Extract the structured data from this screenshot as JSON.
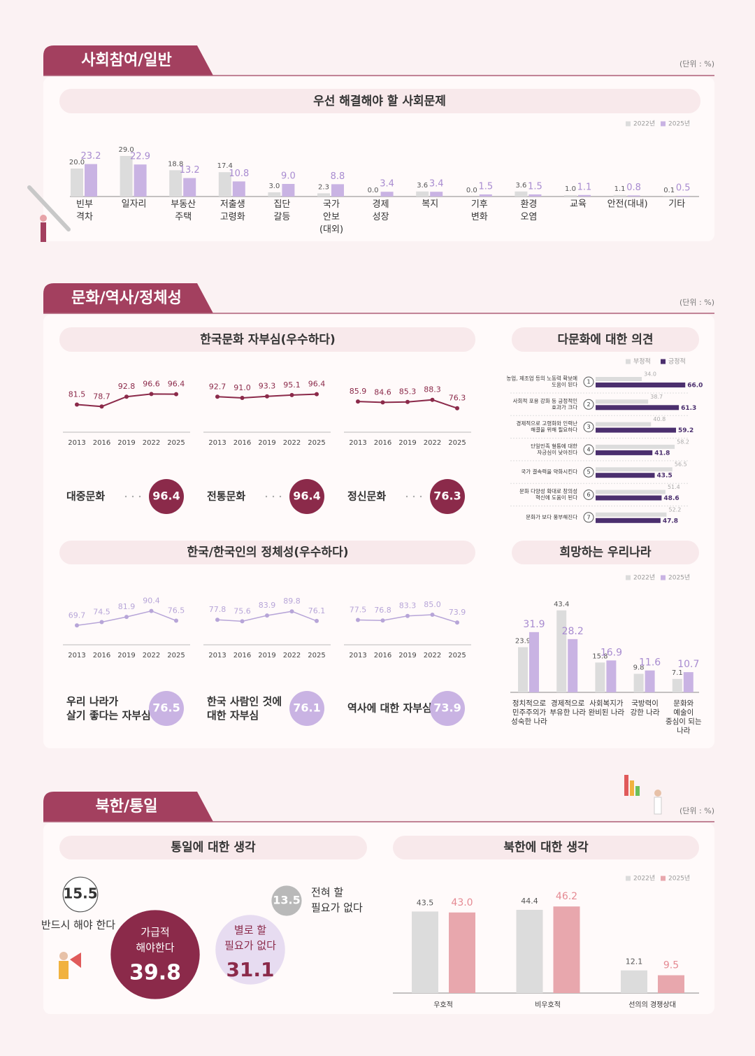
{
  "sections": [
    {
      "title": "사회참여/일반",
      "unit": "(단위 : %)"
    },
    {
      "title": "문화/역사/정체성",
      "unit": "(단위 : %)"
    },
    {
      "title": "북한/통일",
      "unit": "(단위 : %)"
    }
  ],
  "chart_data": [
    {
      "type": "bar",
      "title": "우선 해결해야 할 사회문제",
      "categories": [
        "빈부\n격차",
        "일자리",
        "부동산\n주택",
        "저출생\n고령화",
        "집단\n갈등",
        "국가\n안보\n(대외)",
        "경제\n성장",
        "복지",
        "기후\n변화",
        "환경\n오염",
        "교육",
        "안전(대내)",
        "기타"
      ],
      "series": [
        {
          "name": "2022년",
          "color": "#dcdcdc",
          "values": [
            20.0,
            29.0,
            18.8,
            17.4,
            3.0,
            2.3,
            0.0,
            3.6,
            0.0,
            3.6,
            1.0,
            1.1,
            0.1
          ],
          "value_labels": [
            "20.0",
            "29.0",
            "18.8",
            "17.4",
            "3.0",
            "2.3",
            "0.0",
            "3.6",
            "0.0",
            "3.6",
            "1.0",
            "1.1",
            "0.1"
          ]
        },
        {
          "name": "2025년",
          "color": "#c9b3e3",
          "values": [
            23.2,
            22.9,
            13.2,
            10.8,
            9.0,
            8.8,
            3.4,
            3.4,
            1.5,
            1.5,
            1.1,
            0.8,
            0.5
          ],
          "value_labels": [
            "23.2",
            "22.9",
            "13.2",
            "10.8",
            "9.0",
            "8.8",
            "3.4",
            "3.4",
            "1.5",
            "1.5",
            "1.1",
            "0.8",
            "0.5"
          ]
        }
      ],
      "ylim": [
        0,
        30
      ]
    },
    {
      "type": "line",
      "title": "한국문화 자부심(우수하다)",
      "x": [
        2013,
        2016,
        2019,
        2022,
        2025
      ],
      "series": [
        {
          "name": "대중문화",
          "color": "#8b2a4a",
          "values": [
            81.5,
            78.7,
            92.8,
            96.6,
            96.4
          ],
          "value_labels": [
            "81.5",
            "78.7",
            "92.8",
            "96.6",
            "96.4"
          ]
        },
        {
          "name": "전통문화",
          "color": "#8b2a4a",
          "values": [
            92.7,
            91.0,
            93.3,
            95.1,
            96.4
          ],
          "value_labels": [
            "92.7",
            "91.0",
            "93.3",
            "95.1",
            "96.4"
          ]
        },
        {
          "name": "정신문화",
          "color": "#8b2a4a",
          "values": [
            85.9,
            84.6,
            85.3,
            88.3,
            76.3
          ],
          "value_labels": [
            "85.9",
            "84.6",
            "85.3",
            "88.3",
            "76.3"
          ]
        }
      ],
      "ylim": [
        60,
        100
      ]
    },
    {
      "type": "hbar",
      "title": "다문화에 대한 의견",
      "categories": [
        "농업, 제조업 등의 노동력 확보에\n도움이 된다",
        "사회적 포용 강화 등 긍정적인\n효과가 크다",
        "경제적으로 고령화와 인력난\n해결을 위해 필요하다",
        "단일민족 혈통에 대한\n자긍심이 낮아진다",
        "국가 결속력을 약화시킨다",
        "문화 다양성 확대로 창의성\n혁신에 도움이 된다",
        "문화가 보다 풍부해진다"
      ],
      "item_numbers": [
        1,
        2,
        3,
        4,
        5,
        6,
        7
      ],
      "series": [
        {
          "name": "부정적",
          "color": "#dcdcdc",
          "values": [
            34.0,
            38.7,
            40.8,
            58.2,
            56.5,
            51.4,
            52.2
          ],
          "value_labels": [
            "34.0",
            "38.7",
            "40.8",
            "58.2",
            "56.5",
            "51.4",
            "52.2"
          ]
        },
        {
          "name": "긍정적",
          "color": "#4b2f6e",
          "values": [
            66.0,
            61.3,
            59.2,
            41.8,
            43.5,
            48.6,
            47.8
          ],
          "value_labels": [
            "66.0",
            "61.3",
            "59.2",
            "41.8",
            "43.5",
            "48.6",
            "47.8"
          ]
        }
      ],
      "xlim": [
        0,
        70
      ]
    },
    {
      "type": "line",
      "title": "한국/한국인의 정체성(우수하다)",
      "x": [
        2013,
        2016,
        2019,
        2022,
        2025
      ],
      "series": [
        {
          "name": "우리 나라가\n살기 좋다는 자부심",
          "color": "#b7a5d8",
          "values": [
            69.7,
            74.5,
            81.9,
            90.4,
            76.5
          ],
          "value_labels": [
            "69.7",
            "74.5",
            "81.9",
            "90.4",
            "76.5"
          ]
        },
        {
          "name": "한국 사람인 것에\n대한 자부심",
          "color": "#b7a5d8",
          "values": [
            77.8,
            75.6,
            83.9,
            89.8,
            76.1
          ],
          "value_labels": [
            "77.8",
            "75.6",
            "83.9",
            "89.8",
            "76.1"
          ]
        },
        {
          "name": "역사에 대한 자부심",
          "color": "#b7a5d8",
          "values": [
            77.5,
            76.8,
            83.3,
            85.0,
            73.9
          ],
          "value_labels": [
            "77.5",
            "76.8",
            "83.3",
            "85.0",
            "73.9"
          ]
        }
      ],
      "ylim": [
        60,
        100
      ]
    },
    {
      "type": "bar",
      "title": "희망하는 우리나라",
      "categories": [
        "정치적으로\n민주주의가\n성숙한 나라",
        "경제적으로\n부유한 나라",
        "사회복지가\n완비된 나라",
        "국방력이\n강한 나라",
        "문화와\n예술이\n중심이 되는\n나라"
      ],
      "series": [
        {
          "name": "2022년",
          "color": "#dcdcdc",
          "values": [
            23.9,
            43.4,
            15.8,
            9.8,
            7.1
          ],
          "value_labels": [
            "23.9",
            "43.4",
            "15.8",
            "9.8",
            "7.1"
          ]
        },
        {
          "name": "2025년",
          "color": "#c9b3e3",
          "values": [
            31.9,
            28.2,
            16.9,
            11.6,
            10.7
          ],
          "value_labels": [
            "31.9",
            "28.2",
            "16.9",
            "11.6",
            "10.7"
          ]
        }
      ],
      "ylim": [
        0,
        45
      ]
    },
    {
      "type": "bubble",
      "title": "통일에 대한 생각",
      "categories": [
        "반드시 해야 한다",
        "가급적\n해야한다",
        "별로 할\n필요가 없다",
        "전혀 할\n필요가 없다"
      ],
      "values": [
        15.5,
        39.8,
        31.1,
        13.5
      ],
      "colors": [
        "#ffffff",
        "#8b2a4a",
        "#e7dcf1",
        "#b9b9b9"
      ]
    },
    {
      "type": "bar",
      "title": "북한에 대한 생각",
      "categories": [
        "우호적",
        "비우호적",
        "선의의 경쟁상대"
      ],
      "series": [
        {
          "name": "2022년",
          "color": "#dcdcdc",
          "values": [
            43.5,
            44.4,
            12.1
          ],
          "value_labels": [
            "43.5",
            "44.4",
            "12.1"
          ]
        },
        {
          "name": "2025년",
          "color": "#e8a7ad",
          "values": [
            43.0,
            46.2,
            9.5
          ],
          "value_labels": [
            "43.0",
            "46.2",
            "9.5"
          ]
        }
      ],
      "ylim": [
        0,
        50
      ]
    }
  ]
}
